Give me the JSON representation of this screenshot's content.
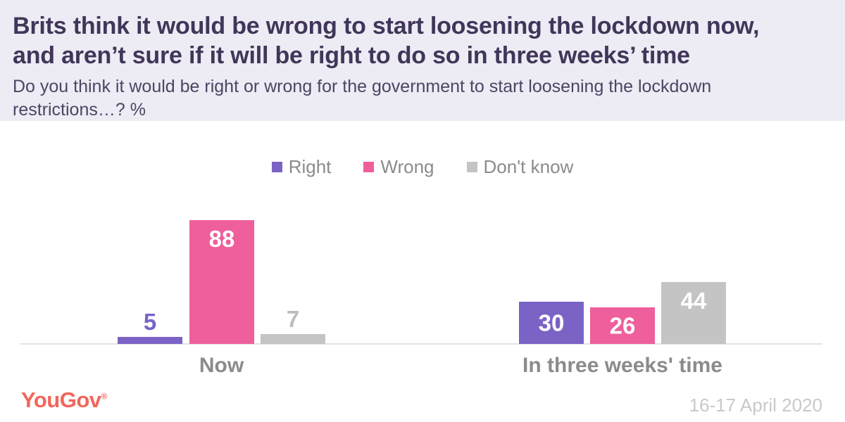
{
  "header": {
    "title": "Brits think it would be wrong to start loosening the lockdown now,\nand aren’t sure if it will be right to do so in three weeks’ time",
    "subtitle": "Do you think it would be right or wrong for the government to start loosening the lockdown\nrestrictions…? %"
  },
  "legend": [
    {
      "label": "Right",
      "color": "#7b63c6"
    },
    {
      "label": "Wrong",
      "color": "#ee5f9b"
    },
    {
      "label": "Don't know",
      "color": "#c4c4c4"
    }
  ],
  "chart_data": {
    "type": "bar",
    "title": "Do you think it would be right or wrong for the government to start loosening the lockdown restrictions…? %",
    "categories": [
      "Now",
      "In three weeks' time"
    ],
    "series": [
      {
        "name": "Right",
        "color": "#7b63c6",
        "values": [
          5,
          30
        ]
      },
      {
        "name": "Wrong",
        "color": "#ee5f9b",
        "values": [
          88,
          26
        ]
      },
      {
        "name": "Don't know",
        "color": "#c4c4c4",
        "label_color": "#bdbdbd",
        "values": [
          7,
          44
        ]
      }
    ],
    "ylim": [
      0,
      100
    ],
    "unit": "%",
    "value_labels": true,
    "legend_position": "top",
    "grid": false
  },
  "footer": {
    "logo_text": "YouGov",
    "registered_mark": "®",
    "date": "16-17 April 2020"
  }
}
